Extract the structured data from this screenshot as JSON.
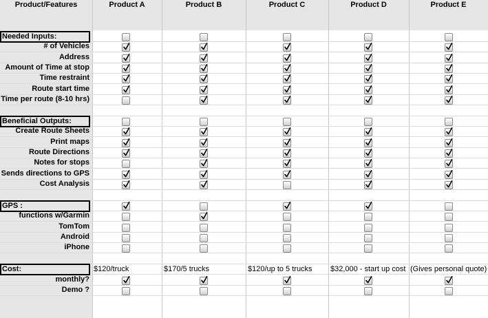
{
  "columns": [
    {
      "key": "features",
      "label": "Product/Features"
    },
    {
      "key": "a",
      "label": "Product A"
    },
    {
      "key": "b",
      "label": "Product B"
    },
    {
      "key": "c",
      "label": "Product C"
    },
    {
      "key": "d",
      "label": "Product D"
    },
    {
      "key": "e",
      "label": "Product E"
    }
  ],
  "rows": [
    {
      "type": "section",
      "label": "Needed Inputs:",
      "checks": [
        false,
        false,
        false,
        false,
        false
      ]
    },
    {
      "type": "item",
      "label": "# of Vehicles",
      "checks": [
        true,
        true,
        true,
        true,
        true
      ]
    },
    {
      "type": "item",
      "label": "Address",
      "checks": [
        true,
        true,
        true,
        true,
        true
      ]
    },
    {
      "type": "item",
      "label": "Amount of Time at stop",
      "checks": [
        true,
        true,
        true,
        true,
        true
      ]
    },
    {
      "type": "item",
      "label": "Time restraint",
      "checks": [
        true,
        true,
        true,
        true,
        true
      ]
    },
    {
      "type": "item",
      "label": "Route start time",
      "checks": [
        true,
        true,
        true,
        true,
        true
      ]
    },
    {
      "type": "item",
      "label": "Time per route (8-10 hrs)",
      "checks": [
        false,
        true,
        true,
        true,
        true
      ]
    },
    {
      "type": "blank"
    },
    {
      "type": "section",
      "label": "Beneficial Outputs:",
      "checks": [
        false,
        false,
        false,
        false,
        false
      ]
    },
    {
      "type": "item",
      "label": "Create Route Sheets",
      "checks": [
        true,
        true,
        true,
        true,
        true
      ]
    },
    {
      "type": "item",
      "label": "Print maps",
      "checks": [
        true,
        true,
        true,
        true,
        true
      ]
    },
    {
      "type": "item",
      "label": "Route Directions",
      "checks": [
        true,
        true,
        true,
        true,
        true
      ]
    },
    {
      "type": "item",
      "label": "Notes for stops",
      "checks": [
        false,
        true,
        true,
        true,
        true
      ]
    },
    {
      "type": "item",
      "label": "Sends directions to GPS",
      "checks": [
        true,
        true,
        true,
        true,
        true
      ]
    },
    {
      "type": "item",
      "label": "Cost Analysis",
      "checks": [
        true,
        true,
        false,
        true,
        true
      ]
    },
    {
      "type": "blank"
    },
    {
      "type": "section",
      "label": "GPS :",
      "checks": [
        true,
        false,
        true,
        true,
        false
      ]
    },
    {
      "type": "item",
      "label": "functions w/Garmin",
      "checks": [
        false,
        true,
        false,
        false,
        false
      ]
    },
    {
      "type": "item",
      "label": "TomTom",
      "checks": [
        false,
        false,
        false,
        false,
        false
      ]
    },
    {
      "type": "item",
      "label": "Android",
      "checks": [
        false,
        false,
        false,
        false,
        false
      ]
    },
    {
      "type": "item",
      "label": "iPhone",
      "checks": [
        false,
        false,
        false,
        false,
        false
      ]
    },
    {
      "type": "blank"
    },
    {
      "type": "cost",
      "label": "Cost:",
      "values": [
        "$120/truck",
        "$170/5 trucks",
        "$120/up to 5 trucks",
        "$32,000 - start up cost",
        "(Gives personal quote)"
      ]
    },
    {
      "type": "item",
      "label": "monthly?",
      "checks": [
        true,
        true,
        true,
        true,
        true
      ]
    },
    {
      "type": "item",
      "label": "Demo ?",
      "checks": [
        false,
        false,
        false,
        false,
        false
      ],
      "clipped": true
    }
  ],
  "colors": {
    "grid": "#dcdcdc",
    "label_bg": "#e6e6e6",
    "check": "#000000"
  }
}
